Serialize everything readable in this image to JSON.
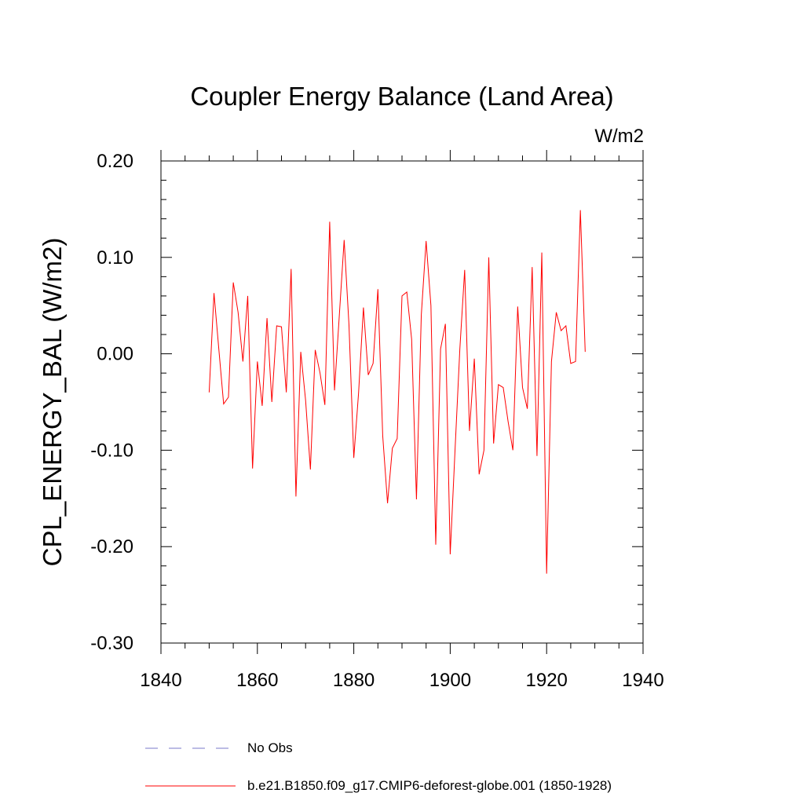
{
  "chart_data": {
    "type": "line",
    "title": "Coupler Energy Balance (Land Area)",
    "units": "W/m2",
    "xlabel": "",
    "ylabel": "CPL_ENERGY_BAL  (W/m2)",
    "xlim": [
      1840,
      1940
    ],
    "ylim": [
      -0.3,
      0.2
    ],
    "xticks": [
      1840,
      1860,
      1880,
      1900,
      1920,
      1940
    ],
    "xtick_labels": [
      "1840",
      "1860",
      "1880",
      "1900",
      "1920",
      "1940"
    ],
    "yticks": [
      -0.3,
      -0.2,
      -0.1,
      0.0,
      0.1,
      0.2
    ],
    "ytick_labels": [
      "-0.30",
      "-0.20",
      "-0.10",
      "0.00",
      "0.10",
      "0.20"
    ],
    "grid": false,
    "legend_position": "bottom",
    "series": [
      {
        "name": "No Obs",
        "color": "#7a7ac8",
        "style": "dashed",
        "x": [],
        "values": []
      },
      {
        "name": "b.e21.B1850.f09_g17.CMIP6-deforest-globe.001 (1850-1928)",
        "color": "#ff0000",
        "style": "solid",
        "x": [
          1850,
          1851,
          1852,
          1853,
          1854,
          1855,
          1856,
          1857,
          1858,
          1859,
          1860,
          1861,
          1862,
          1863,
          1864,
          1865,
          1866,
          1867,
          1868,
          1869,
          1870,
          1871,
          1872,
          1873,
          1874,
          1875,
          1876,
          1877,
          1878,
          1879,
          1880,
          1881,
          1882,
          1883,
          1884,
          1885,
          1886,
          1887,
          1888,
          1889,
          1890,
          1891,
          1892,
          1893,
          1894,
          1895,
          1896,
          1897,
          1898,
          1899,
          1900,
          1901,
          1902,
          1903,
          1904,
          1905,
          1906,
          1907,
          1908,
          1909,
          1910,
          1911,
          1912,
          1913,
          1914,
          1915,
          1916,
          1917,
          1918,
          1919,
          1920,
          1921,
          1922,
          1923,
          1924,
          1925,
          1926,
          1927,
          1928
        ],
        "values": [
          -0.04,
          0.063,
          0.005,
          -0.052,
          -0.045,
          0.074,
          0.043,
          -0.008,
          0.06,
          -0.119,
          -0.008,
          -0.054,
          0.037,
          -0.05,
          0.029,
          0.028,
          -0.04,
          0.088,
          -0.148,
          0.002,
          -0.048,
          -0.12,
          0.004,
          -0.02,
          -0.053,
          0.137,
          -0.038,
          0.04,
          0.118,
          0.03,
          -0.108,
          -0.04,
          0.048,
          -0.022,
          -0.01,
          0.067,
          -0.085,
          -0.155,
          -0.098,
          -0.088,
          0.06,
          0.064,
          0.015,
          -0.151,
          0.04,
          0.117,
          0.05,
          -0.198,
          0.005,
          0.031,
          -0.208,
          -0.1,
          0.005,
          0.087,
          -0.08,
          -0.005,
          -0.125,
          -0.1,
          0.1,
          -0.093,
          -0.032,
          -0.035,
          -0.07,
          -0.1,
          0.049,
          -0.035,
          -0.057,
          0.09,
          -0.106,
          0.105,
          -0.228,
          -0.008,
          0.043,
          0.024,
          0.029,
          -0.01,
          -0.008,
          0.149,
          0.002
        ]
      }
    ]
  }
}
